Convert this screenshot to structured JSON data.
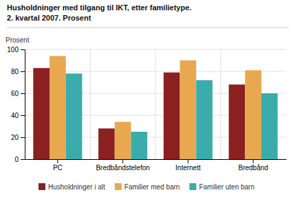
{
  "chart_data": {
    "type": "bar",
    "title": "Husholdninger med tilgang til IKT, etter familietype.",
    "subtitle": "2. kvartal 2007. Prosent",
    "ylabel": "Prosent",
    "categories": [
      "PC",
      "Bredbåndstelefon",
      "Internett",
      "Bredbånd"
    ],
    "series": [
      {
        "name": "Husholdninger i alt",
        "color": "#8B2020",
        "values": [
          83,
          28,
          79,
          68
        ]
      },
      {
        "name": "Familier med barn",
        "color": "#E8A850",
        "values": [
          94,
          34,
          90,
          81
        ]
      },
      {
        "name": "Familier uten barn",
        "color": "#3AACAC",
        "values": [
          78,
          25,
          72,
          60
        ]
      }
    ],
    "ylim": [
      0,
      100
    ],
    "yticks": [
      0,
      20,
      40,
      60,
      80,
      100
    ],
    "grid": true,
    "legend": "bottom"
  }
}
